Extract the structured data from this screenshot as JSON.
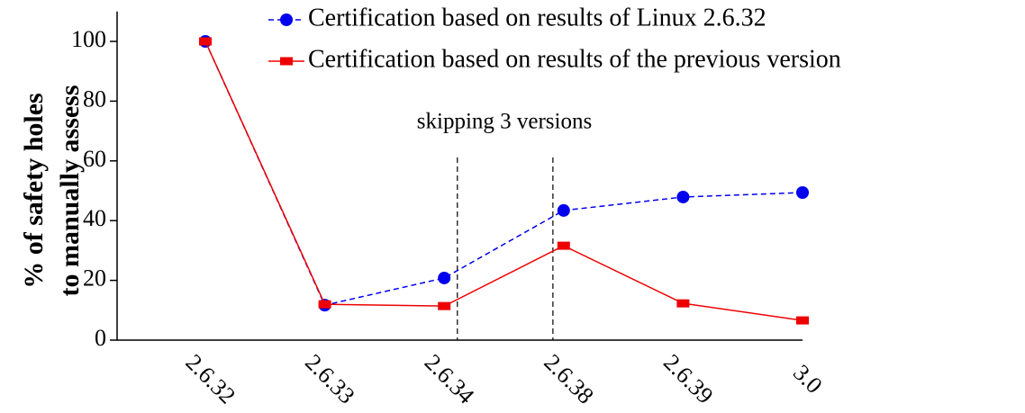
{
  "chart_data": {
    "type": "line",
    "y_label": [
      "% of safety holes",
      "to manually assess"
    ],
    "annotation": "skipping 3 versions",
    "categories": [
      "2.6.32",
      "2.6.33",
      "2.6.34",
      "2.6.38",
      "2.6.39",
      "3.0"
    ],
    "series": [
      {
        "name": "Certification based on results of Linux 2.6.32",
        "color": "#0000ee",
        "marker": "circle",
        "dash": true,
        "values": [
          100,
          11.7,
          20.8,
          43.4,
          47.9,
          49.4
        ]
      },
      {
        "name": "Certification based on results of the previous version",
        "color": "#ee0000",
        "marker": "square",
        "dash": false,
        "values": [
          100,
          12,
          11.4,
          31.6,
          12.3,
          6.6
        ]
      }
    ],
    "ylim": [
      0,
      110
    ],
    "yticks": [
      0,
      20,
      40,
      60,
      80,
      100
    ],
    "grid": false
  }
}
